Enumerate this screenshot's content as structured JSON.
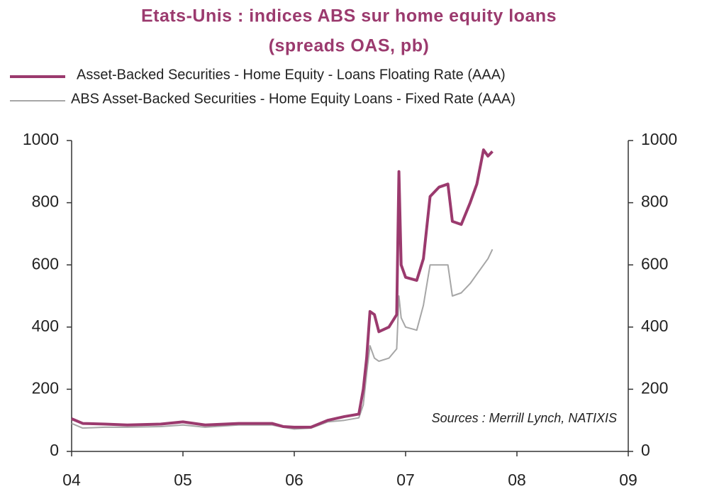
{
  "chart_data": {
    "type": "line",
    "title": "Etats-Unis : indices ABS sur home equity loans",
    "subtitle": "(spreads OAS, pb)",
    "annotation": "Sources : Merrill Lynch, NATIXIS",
    "x": [
      2004.0,
      2004.1,
      2004.3,
      2004.5,
      2004.8,
      2005.0,
      2005.2,
      2005.5,
      2005.8,
      2005.9,
      2006.0,
      2006.15,
      2006.3,
      2006.45,
      2006.58,
      2006.62,
      2006.65,
      2006.68,
      2006.72,
      2006.76,
      2006.85,
      2006.92,
      2006.94,
      2006.96,
      2007.0,
      2007.1,
      2007.16,
      2007.22,
      2007.3,
      2007.38,
      2007.42,
      2007.5,
      2007.58,
      2007.64,
      2007.7,
      2007.74,
      2007.78
    ],
    "series": [
      {
        "name": "Asset-Backed Securities - Home Equity - Loans Floating Rate (AAA)",
        "color": "#9b3a6e",
        "width": 4,
        "values": [
          105,
          90,
          88,
          85,
          88,
          95,
          85,
          90,
          90,
          80,
          78,
          78,
          100,
          112,
          120,
          200,
          300,
          450,
          440,
          385,
          400,
          440,
          900,
          600,
          560,
          550,
          620,
          820,
          850,
          860,
          740,
          730,
          800,
          860,
          970,
          950,
          965
        ]
      },
      {
        "name": "ABS Asset-Backed Securities - Home Equity Loans - Fixed Rate (AAA)",
        "color": "#a6a6a6",
        "width": 2,
        "values": [
          90,
          75,
          78,
          78,
          80,
          85,
          78,
          85,
          85,
          78,
          72,
          75,
          95,
          100,
          108,
          150,
          250,
          340,
          300,
          290,
          300,
          330,
          500,
          430,
          400,
          390,
          470,
          600,
          600,
          600,
          500,
          510,
          540,
          570,
          600,
          620,
          650
        ]
      }
    ],
    "xlim": [
      2004,
      2009
    ],
    "xticks": [
      {
        "value": 2004,
        "label": "04"
      },
      {
        "value": 2005,
        "label": "05"
      },
      {
        "value": 2006,
        "label": "06"
      },
      {
        "value": 2007,
        "label": "07"
      },
      {
        "value": 2008,
        "label": "08"
      },
      {
        "value": 2009,
        "label": "09"
      }
    ],
    "ylim": [
      0,
      1000
    ],
    "yticks": [
      0,
      200,
      400,
      600,
      800,
      1000
    ],
    "y2lim": [
      0,
      1000
    ],
    "y2ticks": [
      0,
      200,
      400,
      600,
      800,
      1000
    ],
    "legend": "top"
  }
}
